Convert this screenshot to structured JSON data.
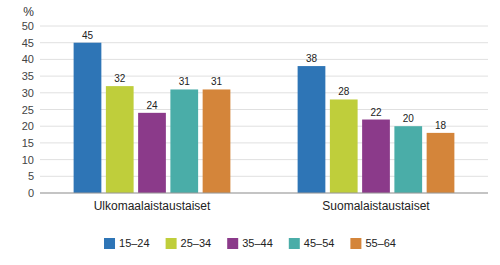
{
  "chart_data": {
    "type": "bar",
    "ylabel": "%",
    "categories": [
      "Ulkomaalaistaustaiset",
      "Suomalaistaustaiset"
    ],
    "series": [
      {
        "name": "15–24",
        "color": "#2E75B6",
        "values": [
          45,
          38
        ]
      },
      {
        "name": "25–34",
        "color": "#BFCE3B",
        "values": [
          32,
          28
        ]
      },
      {
        "name": "35–44",
        "color": "#8B3A8A",
        "values": [
          24,
          22
        ]
      },
      {
        "name": "45–54",
        "color": "#4AADA8",
        "values": [
          31,
          20
        ]
      },
      {
        "name": "55–64",
        "color": "#D4853A",
        "values": [
          31,
          18
        ]
      }
    ],
    "ylim": [
      0,
      50
    ],
    "yticks": [
      0,
      5,
      10,
      15,
      20,
      25,
      30,
      35,
      40,
      45,
      50
    ],
    "grid": true,
    "data_labels": true,
    "legend": "bottom"
  }
}
